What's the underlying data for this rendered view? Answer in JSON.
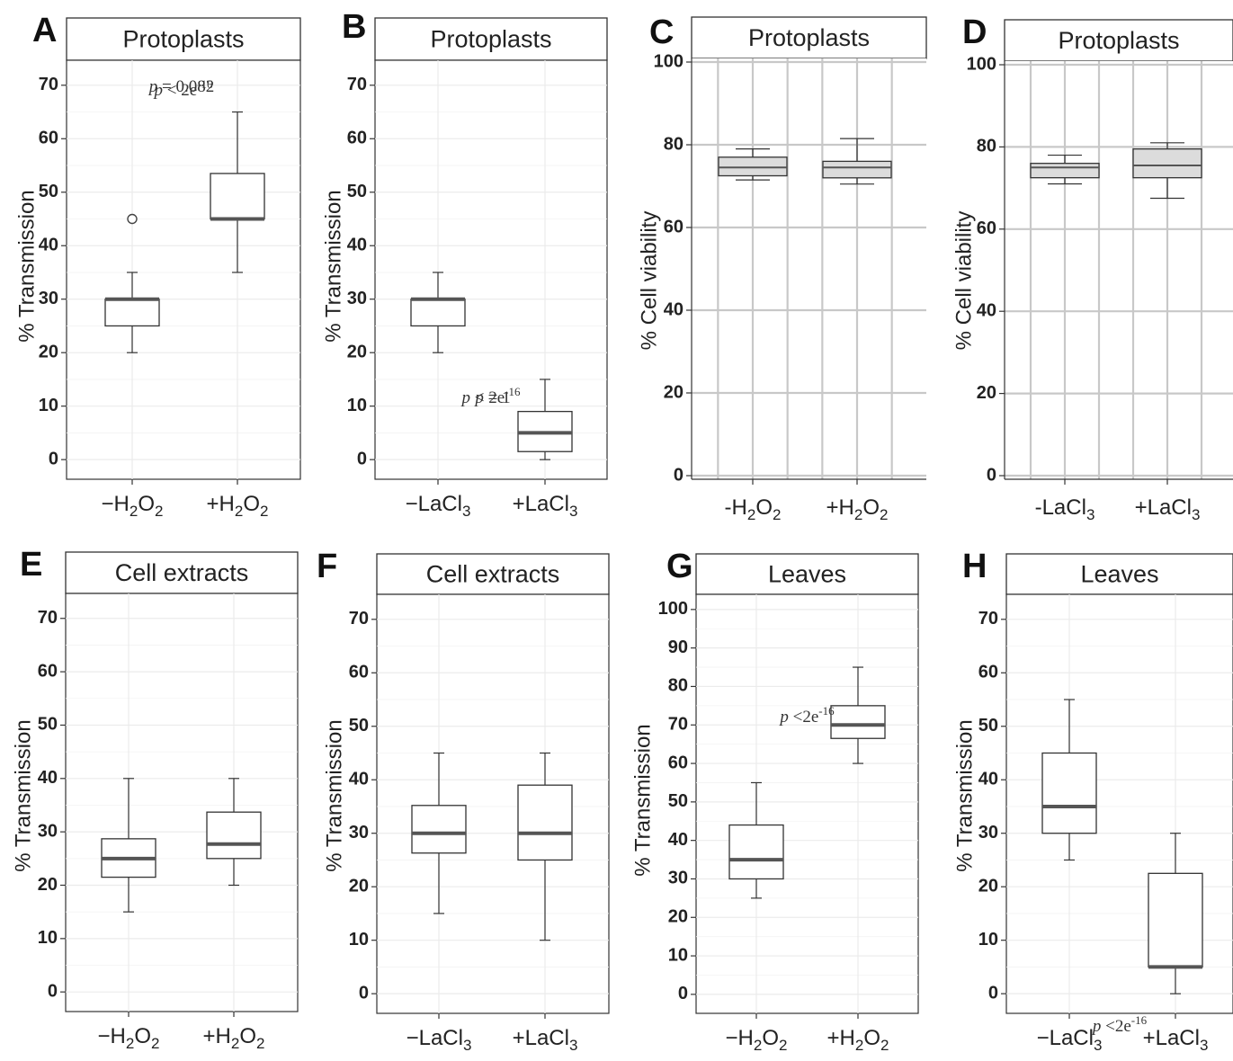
{
  "chart_data": [
    {
      "panel": "A",
      "facet": "Protoplasts",
      "type": "box",
      "ylabel": "% Transmission",
      "ylim": [
        -3,
        74
      ],
      "yticks": [
        0,
        10,
        20,
        30,
        40,
        50,
        60,
        70
      ],
      "categories": [
        [
          "−H",
          "2",
          "O",
          "2",
          ""
        ],
        [
          "+H",
          "2",
          "O",
          "2",
          ""
        ]
      ],
      "boxes": [
        {
          "min": 20,
          "q1": 25,
          "median": 30,
          "q3": 30,
          "max": 35,
          "outliers": [
            45
          ]
        },
        {
          "min": 35,
          "q1": 45,
          "median": 45,
          "q3": 53.5,
          "max": 65,
          "outliers": []
        }
      ],
      "annotation": {
        "p": "p",
        "op": " < 2e",
        "exp": "-16"
      },
      "grid": true,
      "style": "white"
    },
    {
      "panel": "B",
      "facet": "Protoplasts",
      "type": "box",
      "ylabel": "% Transmission",
      "ylim": [
        -3,
        74
      ],
      "yticks": [
        0,
        10,
        20,
        30,
        40,
        50,
        60,
        70
      ],
      "categories": [
        [
          "−LaCl",
          "3",
          "",
          "",
          ""
        ],
        [
          "+LaCl",
          "3",
          "",
          "",
          ""
        ]
      ],
      "boxes": [
        {
          "min": 20,
          "q1": 25,
          "median": 30,
          "q3": 30,
          "max": 35,
          "outliers": []
        },
        {
          "min": 0,
          "q1": 1.5,
          "median": 5,
          "q3": 9,
          "max": 15,
          "outliers": []
        }
      ],
      "annotation": {
        "p": "p",
        "op": " < 2e",
        "exp": "-16"
      },
      "grid": true,
      "style": "white"
    },
    {
      "panel": "C",
      "facet": "Protoplasts",
      "type": "box",
      "ylabel": "% Cell viability",
      "ylim": [
        0,
        100
      ],
      "yticks": [
        0,
        20,
        40,
        60,
        80,
        100
      ],
      "categories": [
        [
          "-H",
          "2",
          "O",
          "2",
          ""
        ],
        [
          "+H",
          "2",
          "O",
          "2",
          ""
        ]
      ],
      "boxes": [
        {
          "min": 71.5,
          "q1": 72.5,
          "median": 74.5,
          "q3": 77,
          "max": 79,
          "outliers": []
        },
        {
          "min": 70.5,
          "q1": 72,
          "median": 74.5,
          "q3": 76,
          "max": 81.5,
          "outliers": []
        }
      ],
      "annotation": null,
      "grid": true,
      "style": "gray"
    },
    {
      "panel": "D",
      "facet": "Protoplasts",
      "type": "box",
      "ylabel": "% Cell viability",
      "ylim": [
        0,
        100
      ],
      "yticks": [
        0,
        20,
        40,
        60,
        80,
        100
      ],
      "categories": [
        [
          "-LaCl",
          "3",
          "",
          "",
          ""
        ],
        [
          "+LaCl",
          "3",
          "",
          "",
          ""
        ]
      ],
      "boxes": [
        {
          "min": 71,
          "q1": 72.5,
          "median": 75,
          "q3": 76,
          "max": 78,
          "outliers": []
        },
        {
          "min": 67.5,
          "q1": 72.5,
          "median": 75.5,
          "q3": 79.5,
          "max": 81,
          "outliers": []
        }
      ],
      "annotation": null,
      "grid": true,
      "style": "gray"
    },
    {
      "panel": "E",
      "facet": "Cell extracts",
      "type": "box",
      "ylabel": "% Transmission",
      "ylim": [
        -3,
        74
      ],
      "yticks": [
        0,
        10,
        20,
        30,
        40,
        50,
        60,
        70
      ],
      "categories": [
        [
          "−H",
          "2",
          "O",
          "2",
          ""
        ],
        [
          "+H",
          "2",
          "O",
          "2",
          ""
        ]
      ],
      "boxes": [
        {
          "min": 15,
          "q1": 21.5,
          "median": 25,
          "q3": 28.7,
          "max": 40,
          "outliers": []
        },
        {
          "min": 20,
          "q1": 25,
          "median": 27.7,
          "q3": 33.7,
          "max": 40,
          "outliers": []
        }
      ],
      "annotation": {
        "p": "p",
        "op": " = 0.082",
        "exp": ""
      },
      "grid": true,
      "style": "white"
    },
    {
      "panel": "F",
      "facet": "Cell extracts",
      "type": "box",
      "ylabel": "% Transmission",
      "ylim": [
        -3,
        74
      ],
      "yticks": [
        0,
        10,
        20,
        30,
        40,
        50,
        60,
        70
      ],
      "categories": [
        [
          "−LaCl",
          "3",
          "",
          "",
          ""
        ],
        [
          "+LaCl",
          "3",
          "",
          "",
          ""
        ]
      ],
      "boxes": [
        {
          "min": 15,
          "q1": 26.3,
          "median": 30,
          "q3": 35.2,
          "max": 45,
          "outliers": []
        },
        {
          "min": 10,
          "q1": 25,
          "median": 30,
          "q3": 39,
          "max": 45,
          "outliers": []
        }
      ],
      "annotation": {
        "p": "p",
        "op": " = 1",
        "exp": ""
      },
      "grid": true,
      "style": "white"
    },
    {
      "panel": "G",
      "facet": "Leaves",
      "type": "box",
      "ylabel": "% Transmission",
      "ylim": [
        -4,
        103
      ],
      "yticks": [
        0,
        10,
        20,
        30,
        40,
        50,
        60,
        70,
        80,
        90,
        100
      ],
      "categories": [
        [
          "−H",
          "2",
          "O",
          "2",
          ""
        ],
        [
          "+H",
          "2",
          "O",
          "2",
          ""
        ]
      ],
      "boxes": [
        {
          "min": 25,
          "q1": 30,
          "median": 35,
          "q3": 44,
          "max": 55,
          "outliers": []
        },
        {
          "min": 60,
          "q1": 66.5,
          "median": 70,
          "q3": 75,
          "max": 85,
          "outliers": []
        }
      ],
      "annotation": {
        "p": "p",
        "op": " <2e",
        "exp": "-16"
      },
      "grid": true,
      "style": "white"
    },
    {
      "panel": "H",
      "facet": "Leaves",
      "type": "box",
      "ylabel": "% Transmission",
      "ylim": [
        -3,
        74
      ],
      "yticks": [
        0,
        10,
        20,
        30,
        40,
        50,
        60,
        70
      ],
      "categories": [
        [
          "−LaCl",
          "3",
          "",
          "",
          ""
        ],
        [
          "+LaCl",
          "3",
          "",
          "",
          ""
        ]
      ],
      "boxes": [
        {
          "min": 25,
          "q1": 30,
          "median": 35,
          "q3": 45,
          "max": 55,
          "outliers": []
        },
        {
          "min": 0,
          "q1": 5,
          "median": 5,
          "q3": 22.5,
          "max": 30,
          "outliers": []
        }
      ],
      "annotation": {
        "p": "p",
        "op": " <2e",
        "exp": "-16"
      },
      "grid": true,
      "style": "white"
    }
  ]
}
